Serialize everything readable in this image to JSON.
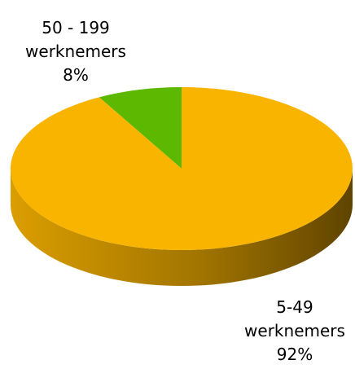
{
  "chart_data": {
    "type": "pie",
    "categories": [
      "50 - 199 werknemers",
      "5-49 werknemers"
    ],
    "values": [
      8,
      92
    ],
    "value_labels": [
      "8%",
      "92%"
    ],
    "colors": [
      "#5cb800",
      "#f9b400"
    ]
  }
}
